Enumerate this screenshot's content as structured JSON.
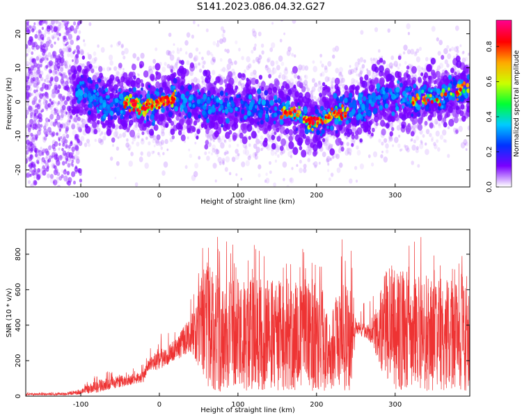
{
  "title": "S141.2023.086.04.32.G27",
  "charts": [
    {
      "type": "heatmap",
      "xlabel": "Height of straight line (km)",
      "ylabel": "Frequency (Hz)",
      "xlim": [
        -170,
        395
      ],
      "ylim": [
        -25,
        24
      ],
      "xticks": [
        -100,
        0,
        100,
        200,
        300
      ],
      "yticks": [
        -20,
        -10,
        0,
        10,
        20
      ],
      "colorbar": {
        "label": "Normalized spectral amplitude",
        "range": [
          0,
          0.95
        ],
        "ticks": [
          "0.0",
          "0.2",
          "0.4",
          "0.6",
          "0.8"
        ],
        "colormap": [
          "#ffffff",
          "#7a00ff",
          "#0033ff",
          "#00ccff",
          "#00ff33",
          "#ccff00",
          "#ffaa00",
          "#ff0000",
          "#ff0088"
        ]
      },
      "ridge": {
        "description": "frequency centre of the dominant spectral band vs height",
        "x": [
          -100,
          -80,
          -60,
          -40,
          -20,
          0,
          20,
          40,
          60,
          80,
          100,
          120,
          140,
          160,
          180,
          190,
          200,
          210,
          220,
          240,
          260,
          280,
          300,
          320,
          340,
          360,
          380,
          395
        ],
        "freq": [
          3,
          1,
          -1,
          0,
          -2,
          0,
          1,
          0,
          -1,
          -1,
          -2,
          -1,
          -2,
          -3,
          -4,
          -6,
          -6,
          -5,
          -4,
          -3,
          -2,
          2,
          1,
          0,
          1,
          2,
          3,
          4
        ]
      }
    },
    {
      "type": "line",
      "xlabel": "Height of straight line (km)",
      "ylabel": "SNR (10 * v/v)",
      "xlim": [
        -170,
        395
      ],
      "ylim": [
        0,
        940
      ],
      "xticks": [
        -100,
        0,
        100,
        200,
        300
      ],
      "yticks": [
        0,
        200,
        400,
        600,
        800
      ],
      "color": "#ee3333",
      "envelope": {
        "x": [
          -170,
          -120,
          -100,
          -80,
          -60,
          -40,
          -20,
          -15,
          0,
          20,
          40,
          60,
          80,
          100,
          140,
          180,
          210,
          215,
          230,
          245,
          250,
          270,
          290,
          310,
          340,
          370,
          395
        ],
        "low": [
          5,
          5,
          10,
          20,
          40,
          60,
          80,
          140,
          150,
          200,
          250,
          50,
          20,
          30,
          30,
          30,
          30,
          40,
          40,
          20,
          350,
          300,
          50,
          30,
          30,
          30,
          30
        ],
        "high": [
          15,
          20,
          40,
          90,
          110,
          120,
          140,
          200,
          260,
          320,
          450,
          780,
          660,
          660,
          660,
          640,
          640,
          380,
          660,
          660,
          420,
          400,
          760,
          720,
          680,
          660,
          600
        ]
      }
    }
  ]
}
